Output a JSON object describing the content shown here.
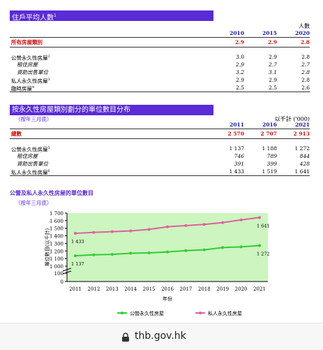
{
  "section1": {
    "title": "住戶平均人數",
    "title_note": "1",
    "unit": "人數",
    "years": [
      "2010",
      "2015",
      "2020"
    ],
    "rows": [
      {
        "label": "所有房屋類別",
        "values": [
          "2.9",
          "2.9",
          "2.8"
        ],
        "style": "total"
      },
      {
        "label": "公營永久性房屋",
        "note": "2",
        "values": [
          "3.0",
          "2.9",
          "2.8"
        ],
        "style": "normal"
      },
      {
        "label": "租住房屋",
        "values": [
          "2.9",
          "2.7",
          "2.7"
        ],
        "style": "indent"
      },
      {
        "label": "資助出售單位",
        "values": [
          "3.2",
          "3.1",
          "2.8"
        ],
        "style": "indent"
      },
      {
        "label": "私人永久性房屋",
        "note": "3",
        "values": [
          "2.9",
          "2.9",
          "2.8"
        ],
        "style": "normal"
      },
      {
        "label": "臨時房屋",
        "note": "4",
        "values": [
          "2.5",
          "2.5",
          "2.6"
        ],
        "style": "normal"
      }
    ]
  },
  "section2": {
    "title": "按永久性房屋類別劃分的單位數目分布",
    "subtitle": "（按年三月底）",
    "unit": "以千計 ('000)",
    "years": [
      "2011",
      "2016",
      "2021"
    ],
    "rows": [
      {
        "label": "總數",
        "values": [
          "2 570",
          "2 707",
          "2 913"
        ],
        "style": "total"
      },
      {
        "label": "公營永久性房屋",
        "note": "5",
        "values": [
          "1 137",
          "1 188",
          "1 272"
        ],
        "style": "normal"
      },
      {
        "label": "租住房屋",
        "values": [
          "746",
          "789",
          "844"
        ],
        "style": "indent"
      },
      {
        "label": "資助出售單位",
        "values": [
          "391",
          "399",
          "428"
        ],
        "style": "indent"
      },
      {
        "label": "私人永久性房屋",
        "note": "6",
        "values": [
          "1 433",
          "1 519",
          "1 641"
        ],
        "style": "normal"
      }
    ]
  },
  "section3": {
    "title": "公營及私人永久性房屋的單位數目",
    "subtitle": "（按年三月底）"
  },
  "chart_data": {
    "type": "line",
    "title": "公營及私人永久性房屋的單位數目",
    "xlabel": "年份",
    "ylabel": "單位數目(以千計)",
    "x": [
      "2011",
      "2012",
      "2013",
      "2014",
      "2015",
      "2016",
      "2017",
      "2018",
      "2019",
      "2020",
      "2021"
    ],
    "ylim": [
      0,
      1700
    ],
    "yticks": [
      "0",
      "100",
      "1 000",
      "1 100",
      "1 200",
      "1 300",
      "1 400",
      "1 500",
      "1 600",
      "1 700"
    ],
    "axis_break": true,
    "series": [
      {
        "name": "公營永久性房屋",
        "color": "#33cc33",
        "values": [
          1137,
          1150,
          1155,
          1170,
          1175,
          1188,
          1205,
          1215,
          1245,
          1255,
          1272
        ]
      },
      {
        "name": "私人永久性房屋",
        "color": "#e060a0",
        "values": [
          1433,
          1445,
          1455,
          1465,
          1485,
          1519,
          1535,
          1550,
          1575,
          1610,
          1641
        ]
      }
    ],
    "data_labels": [
      {
        "series": 0,
        "index": 0,
        "text": "1 137"
      },
      {
        "series": 0,
        "index": 10,
        "text": "1 272"
      },
      {
        "series": 1,
        "index": 0,
        "text": "1 433"
      },
      {
        "series": 1,
        "index": 10,
        "text": "1 641"
      }
    ],
    "plot_background": "#ccf5bf",
    "grid": false,
    "legend_position": "bottom"
  },
  "footer": {
    "url": "thb.gov.hk",
    "lock_icon": "lock-icon"
  }
}
